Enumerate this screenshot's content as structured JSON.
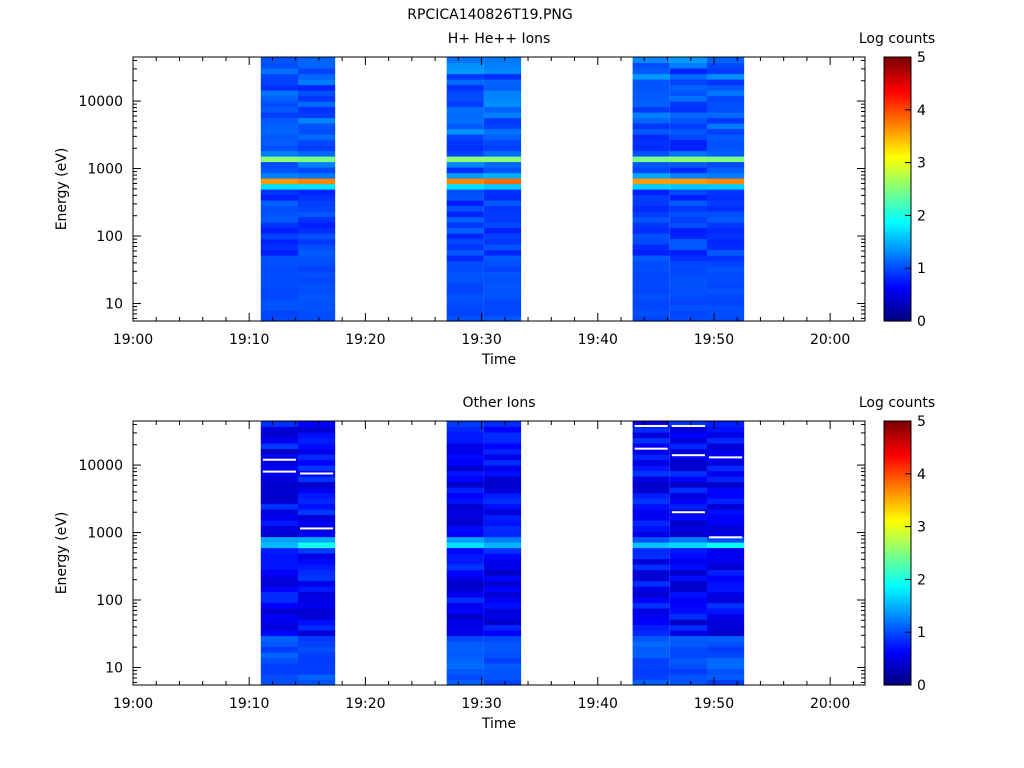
{
  "page_title": "RPCICA140826T19.PNG",
  "chart_data": [
    {
      "type": "heatmap",
      "title": "H+ He++ Ions",
      "xlabel": "Time",
      "ylabel": "Energy (eV)",
      "x_ticks": [
        "19:00",
        "19:10",
        "19:20",
        "19:30",
        "19:40",
        "19:50",
        "20:00"
      ],
      "x_range_minutes": [
        0,
        63
      ],
      "y_ticks": [
        "10",
        "100",
        "1000",
        "10000"
      ],
      "y_scale": "log",
      "y_range": [
        5.5,
        45000
      ],
      "colorbar": {
        "label": "Log counts",
        "ticks": [
          "0",
          "1",
          "2",
          "3",
          "4",
          "5"
        ],
        "range": [
          0,
          5
        ],
        "colormap": "jet"
      },
      "columns": [
        {
          "start": 11,
          "end": 14.2,
          "profile": "hp_a"
        },
        {
          "start": 14.2,
          "end": 17.4,
          "profile": "hp_b"
        },
        {
          "start": 27,
          "end": 30.2,
          "profile": "hp_c"
        },
        {
          "start": 30.2,
          "end": 33.4,
          "profile": "hp_d"
        },
        {
          "start": 43,
          "end": 46.2,
          "profile": "hp_e"
        },
        {
          "start": 46.2,
          "end": 49.4,
          "profile": "hp_f"
        },
        {
          "start": 49.4,
          "end": 52.6,
          "profile": "hp_g"
        }
      ],
      "peak_energy_ev": 650,
      "peak_log_counts": 3.4
    },
    {
      "type": "heatmap",
      "title": "Other Ions",
      "xlabel": "Time",
      "ylabel": "Energy (eV)",
      "x_ticks": [
        "19:00",
        "19:10",
        "19:20",
        "19:30",
        "19:40",
        "19:50",
        "20:00"
      ],
      "x_range_minutes": [
        0,
        63
      ],
      "y_ticks": [
        "10",
        "100",
        "1000",
        "10000"
      ],
      "y_scale": "log",
      "y_range": [
        5.5,
        45000
      ],
      "colorbar": {
        "label": "Log counts",
        "ticks": [
          "0",
          "1",
          "2",
          "3",
          "4",
          "5"
        ],
        "range": [
          0,
          5
        ],
        "colormap": "jet"
      },
      "columns": [
        {
          "start": 11,
          "end": 14.2,
          "profile": "ot_a"
        },
        {
          "start": 14.2,
          "end": 17.4,
          "profile": "ot_b"
        },
        {
          "start": 27,
          "end": 30.2,
          "profile": "ot_c"
        },
        {
          "start": 30.2,
          "end": 33.4,
          "profile": "ot_d"
        },
        {
          "start": 43,
          "end": 46.2,
          "profile": "ot_e"
        },
        {
          "start": 46.2,
          "end": 49.4,
          "profile": "ot_f"
        },
        {
          "start": 49.4,
          "end": 52.6,
          "profile": "ot_g"
        }
      ],
      "peak_energy_ev": 700,
      "peak_log_counts": 1.9
    }
  ]
}
